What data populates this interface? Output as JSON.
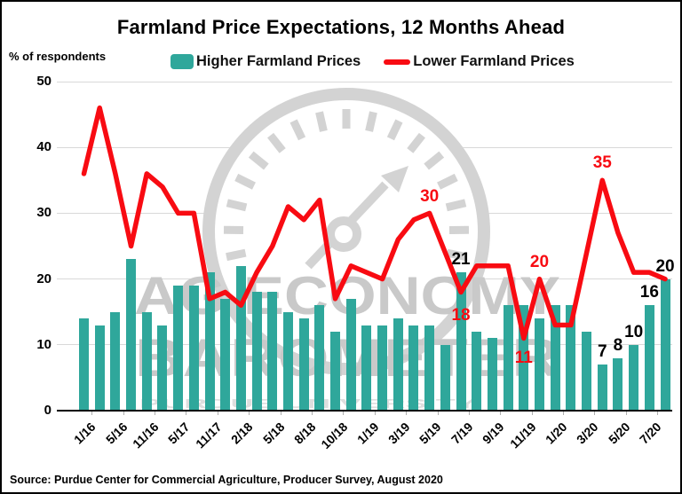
{
  "title": "Farmland Price Expectations, 12 Months Ahead",
  "y_axis": {
    "label": "% of respondents",
    "ticks": [
      0,
      10,
      20,
      30,
      40,
      50
    ],
    "max": 50
  },
  "legend": {
    "higher": {
      "label": "Higher Farmland Prices",
      "color": "#2fa79b",
      "marker": "bar-swatch"
    },
    "lower": {
      "label": "Lower Farmland Prices",
      "color": "#f80b12",
      "marker": "line-swatch"
    }
  },
  "watermark": {
    "line1": "AG ECONOMY",
    "line2": "BAROMETER",
    "line3": "PURDUE UNIVERSITY"
  },
  "source": "Source: Purdue Center for Commercial Agriculture, Producer Survey, August 2020",
  "colors": {
    "bar": "#2fa79b",
    "line": "#f80b12",
    "gridline": "#d9d9d9",
    "watermark_gray": "#d3d3d3",
    "watermark_text": "#c9c9c9",
    "annotation_red": "#f80b12",
    "annotation_black": "#000000"
  },
  "chart_data": {
    "type": "bar+line combo",
    "title": "Farmland Price Expectations, 12 Months Ahead",
    "ylabel": "% of respondents",
    "ylim": [
      0,
      50
    ],
    "grid": "horizontal",
    "n_bars": 38,
    "x_tick_labels": [
      "1/16",
      "5/16",
      "11/16",
      "5/17",
      "11/17",
      "2/18",
      "5/18",
      "8/18",
      "10/18",
      "1/19",
      "3/19",
      "5/19",
      "7/19",
      "9/19",
      "11/19",
      "1/20",
      "3/20",
      "5/20",
      "7/20"
    ],
    "x_tick_label_every": 2,
    "series": [
      {
        "name": "Higher Farmland Prices",
        "type": "bar",
        "values": [
          14,
          13,
          15,
          23,
          15,
          13,
          19,
          19,
          21,
          17,
          22,
          18,
          18,
          15,
          14,
          16,
          12,
          17,
          13,
          13,
          14,
          13,
          13,
          10,
          21,
          12,
          11,
          16,
          16,
          14,
          16,
          16,
          12,
          7,
          8,
          10,
          16,
          20
        ]
      },
      {
        "name": "Lower Farmland Prices",
        "type": "line",
        "values": [
          36,
          46,
          36,
          25,
          36,
          34,
          30,
          30,
          17,
          18,
          16,
          21,
          25,
          31,
          29,
          32,
          17,
          22,
          21,
          20,
          26,
          29,
          30,
          24,
          18,
          22,
          22,
          22,
          11,
          20,
          13,
          13,
          24,
          35,
          27,
          21,
          21,
          20
        ]
      }
    ],
    "annotations": [
      {
        "text": "30",
        "color": "red",
        "bar": 23,
        "value": 30,
        "dy": -28
      },
      {
        "text": "18",
        "color": "red",
        "bar": 25,
        "value": 18,
        "dy": 17
      },
      {
        "text": "21",
        "color": "black",
        "bar": 25,
        "value": 21,
        "dy": -24
      },
      {
        "text": "11",
        "color": "red",
        "bar": 29,
        "value": 11,
        "dy": 13
      },
      {
        "text": "20",
        "color": "red",
        "bar": 30,
        "value": 20,
        "dy": -29
      },
      {
        "text": "35",
        "color": "red",
        "bar": 34,
        "value": 35,
        "dy": -29
      },
      {
        "text": "7",
        "color": "black",
        "bar": 34,
        "value": 7,
        "dy": -24
      },
      {
        "text": "8",
        "color": "black",
        "bar": 35,
        "value": 8,
        "dy": -24
      },
      {
        "text": "10",
        "color": "black",
        "bar": 36,
        "value": 10,
        "dy": -24
      },
      {
        "text": "16",
        "color": "black",
        "bar": 37,
        "value": 16,
        "dy": -24
      },
      {
        "text": "20",
        "color": "black",
        "bar": 38,
        "value": 20,
        "dy": -24
      }
    ]
  }
}
